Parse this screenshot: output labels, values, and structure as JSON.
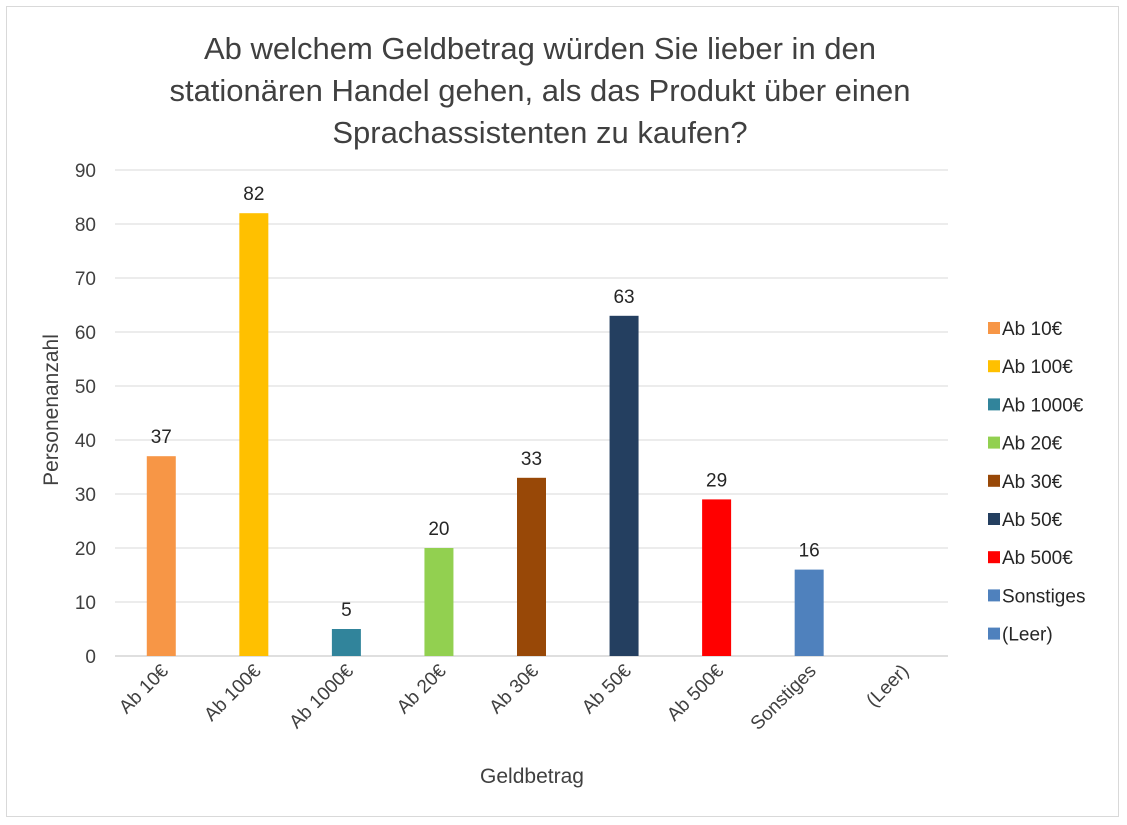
{
  "chart_data": {
    "type": "bar",
    "title": "Ab welchem Geldbetrag würden Sie lieber in den stationären Handel gehen, als das Produkt über einen Sprachassistenten zu kaufen?",
    "title_lines": [
      "Ab welchem Geldbetrag würden Sie lieber in den",
      "stationären Handel gehen, als das Produkt über einen",
      "Sprachassistenten zu kaufen?"
    ],
    "xlabel": "Geldbetrag",
    "ylabel": "Personenanzahl",
    "ylim": [
      0,
      90
    ],
    "yticks": [
      0,
      10,
      20,
      30,
      40,
      50,
      60,
      70,
      80,
      90
    ],
    "grid": true,
    "legend_position": "right",
    "categories": [
      "Ab 10€",
      "Ab 100€",
      "Ab 1000€",
      "Ab 20€",
      "Ab 30€",
      "Ab 50€",
      "Ab 500€",
      "Sonstiges",
      "(Leer)"
    ],
    "values": [
      37,
      82,
      5,
      20,
      33,
      63,
      29,
      16,
      null
    ],
    "colors": [
      "#f79646",
      "#ffc000",
      "#31849b",
      "#92d050",
      "#984807",
      "#243f60",
      "#ff0000",
      "#4f81bd",
      "#4f81bd"
    ]
  }
}
